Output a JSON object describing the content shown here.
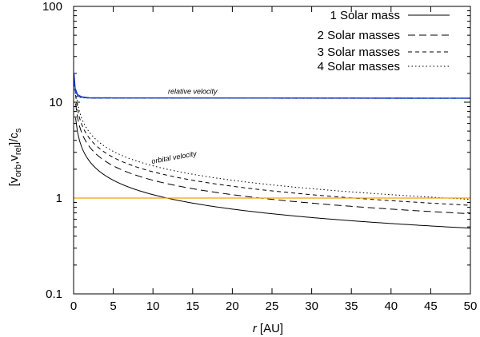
{
  "chart_data": {
    "type": "line",
    "title": "",
    "xlabel": "r [AU]",
    "xlabel_var": "r",
    "xlabel_unit": "[AU]",
    "ylabel": "[v_orb, v_rel]/c_s",
    "ylabel_parts": {
      "open": "[v",
      "sub1": "orb",
      "comma": ",v",
      "sub2": "rel",
      "close": "]/c",
      "sub3": "s"
    },
    "xlim": [
      0,
      50
    ],
    "ylim": [
      0.1,
      100
    ],
    "yscale": "log",
    "xticks": [
      0,
      5,
      10,
      15,
      20,
      25,
      30,
      35,
      40,
      45,
      50
    ],
    "yticks": [
      0.1,
      1,
      10,
      100
    ],
    "ytick_labels": [
      "0.1",
      "1",
      "10",
      "100"
    ],
    "legend_position": "top-right",
    "legend": [
      {
        "label": "1 Solar mass",
        "style": "solid"
      },
      {
        "label": "2 Solar masses",
        "style": "dashed"
      },
      {
        "label": "3 Solar masses",
        "style": "short-dashed"
      },
      {
        "label": "4 Solar masses",
        "style": "dotted"
      }
    ],
    "annotations": [
      {
        "text": "relative velocity",
        "x": 15,
        "y": 11.8
      },
      {
        "text": "orbital velocity",
        "x": 13,
        "y": 2.55
      }
    ],
    "series": [
      {
        "name": "orbital velocity, 1 Solar mass",
        "style": "solid",
        "color": "#000000",
        "x": [
          0.5,
          1,
          2,
          5,
          10,
          20,
          30,
          40,
          50
        ],
        "y": [
          4.85,
          3.43,
          2.43,
          1.53,
          1.05,
          0.76,
          0.63,
          0.54,
          0.47
        ]
      },
      {
        "name": "orbital velocity, 2 Solar masses",
        "style": "dashed",
        "color": "#000000",
        "x": [
          0.5,
          1,
          2,
          5,
          10,
          20,
          30,
          40,
          50
        ],
        "y": [
          6.86,
          4.85,
          3.43,
          2.17,
          1.53,
          1.08,
          0.89,
          0.77,
          0.67
        ]
      },
      {
        "name": "orbital velocity, 3 Solar masses",
        "style": "short-dashed",
        "color": "#000000",
        "x": [
          0.5,
          1,
          2,
          5,
          10,
          20,
          30,
          40,
          50
        ],
        "y": [
          8.4,
          5.94,
          4.2,
          2.66,
          1.88,
          1.33,
          1.08,
          0.94,
          0.81
        ]
      },
      {
        "name": "orbital velocity, 4 Solar masses",
        "style": "dotted",
        "color": "#000000",
        "x": [
          0.5,
          1,
          2,
          5,
          10,
          20,
          30,
          40,
          50
        ],
        "y": [
          9.7,
          6.86,
          4.85,
          3.07,
          2.17,
          1.53,
          1.25,
          1.08,
          1.0
        ]
      },
      {
        "name": "relative velocity, 1 Solar mass",
        "style": "solid",
        "color": "#1a3fbf",
        "x": [
          0.05,
          0.2,
          0.5,
          1,
          2,
          50
        ],
        "y": [
          20,
          14,
          12,
          11.4,
          11.1,
          11.0
        ]
      },
      {
        "name": "relative velocity, 2 Solar masses",
        "style": "dashed",
        "color": "#1a3fbf",
        "x": [
          0.05,
          0.2,
          0.5,
          1,
          2,
          50
        ],
        "y": [
          18,
          13.5,
          11.8,
          11.3,
          11.1,
          11.0
        ]
      },
      {
        "name": "relative velocity, 3 Solar masses",
        "style": "short-dashed",
        "color": "#1a3fbf",
        "x": [
          0.05,
          0.2,
          0.5,
          1,
          2,
          50
        ],
        "y": [
          16,
          13,
          11.6,
          11.2,
          11.05,
          11.0
        ]
      },
      {
        "name": "relative velocity, 4 Solar masses",
        "style": "dotted",
        "color": "#1a3fbf",
        "x": [
          0.05,
          0.2,
          0.5,
          1,
          2,
          50
        ],
        "y": [
          15,
          12.5,
          11.5,
          11.15,
          11.05,
          11.0
        ]
      },
      {
        "name": "reference level",
        "style": "solid",
        "color": "#f5a000",
        "x": [
          0,
          50
        ],
        "y": [
          1,
          1
        ]
      }
    ]
  }
}
